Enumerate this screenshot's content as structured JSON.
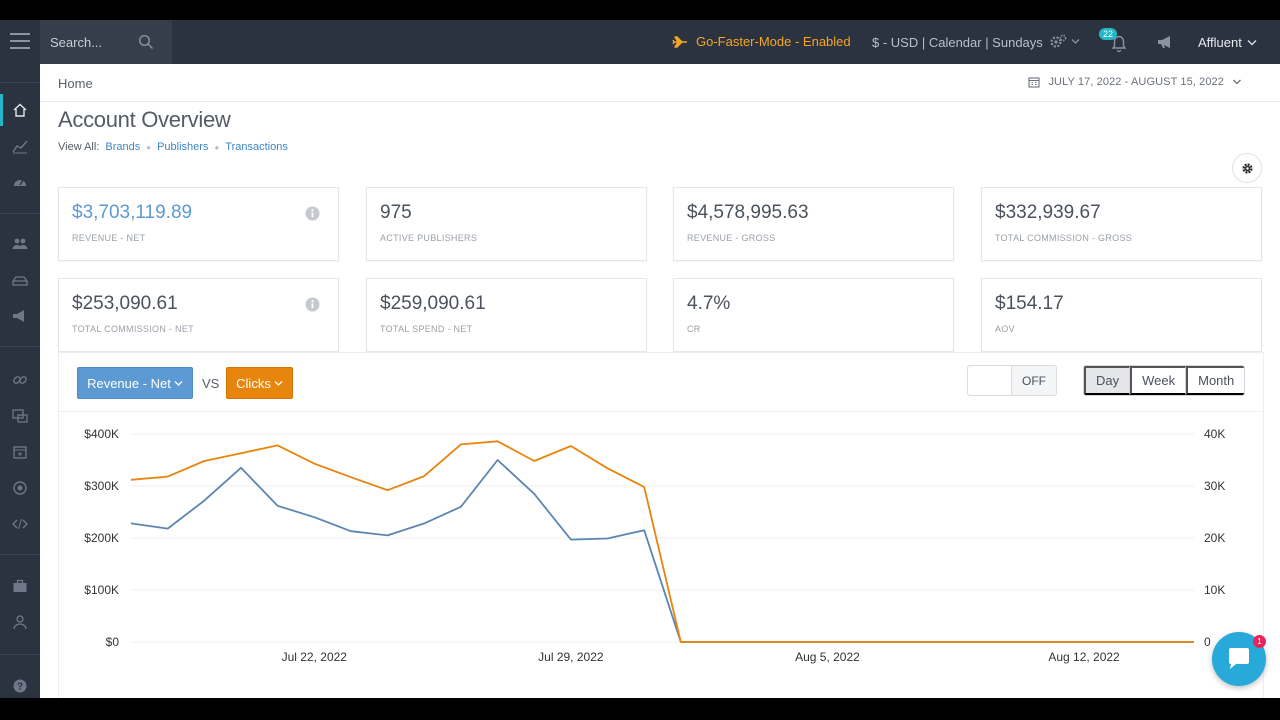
{
  "topbar": {
    "search_placeholder": "Search...",
    "go_faster": "Go-Faster-Mode - Enabled",
    "currency_calendar": "$ - USD | Calendar | Sundays",
    "notifications_count": "22",
    "account_name": "Affluent"
  },
  "header": {
    "breadcrumb": "Home",
    "date_range": "JULY 17, 2022 - AUGUST 15, 2022"
  },
  "page": {
    "title": "Account Overview",
    "view_all_label": "View All:",
    "links": [
      "Brands",
      "Publishers",
      "Transactions"
    ]
  },
  "kpis": [
    {
      "value": "$3,703,119.89",
      "label": "REVENUE - NET"
    },
    {
      "value": "975",
      "label": "ACTIVE PUBLISHERS"
    },
    {
      "value": "$4,578,995.63",
      "label": "REVENUE - GROSS"
    },
    {
      "value": "$332,939.67",
      "label": "TOTAL COMMISSION - GROSS"
    },
    {
      "value": "$253,090.61",
      "label": "TOTAL COMMISSION - NET"
    },
    {
      "value": "$259,090.61",
      "label": "TOTAL SPEND - NET"
    },
    {
      "value": "4.7%",
      "label": "CR"
    },
    {
      "value": "$154.17",
      "label": "AOV"
    }
  ],
  "chart_controls": {
    "metric_a": "Revenue - Net",
    "vs": "VS",
    "metric_b": "Clicks",
    "toggle_label": "OFF",
    "periods": [
      "Day",
      "Week",
      "Month"
    ],
    "active_period": "Day"
  },
  "chat": {
    "badge": "1"
  },
  "colors": {
    "accent_blue": "#5d9ad3",
    "accent_orange": "#e8850d",
    "sidebar_bg": "#2c3340",
    "teal": "#22b6c7"
  },
  "chart_data": {
    "type": "line",
    "x_tick_labels": [
      "Jul 22, 2022",
      "Jul 29, 2022",
      "Aug 5, 2022",
      "Aug 12, 2022"
    ],
    "x_tick_day_index": [
      5,
      12,
      19,
      26
    ],
    "days": 30,
    "y_left": {
      "ticks": [
        "$0",
        "$100K",
        "$200K",
        "$300K",
        "$400K"
      ],
      "range": [
        0,
        400000
      ]
    },
    "y_right": {
      "ticks": [
        "0",
        "10K",
        "20K",
        "30K",
        "40K"
      ],
      "range": [
        0,
        40000
      ]
    },
    "series": [
      {
        "name": "Revenue - Net",
        "axis": "left",
        "color": "#5b86b0",
        "values": [
          228000,
          218000,
          272000,
          335000,
          262000,
          240000,
          213000,
          205000,
          228000,
          260000,
          350000,
          285000,
          197000,
          199000,
          215000,
          0,
          0,
          0,
          0,
          0,
          0,
          0,
          0,
          0,
          0,
          0,
          0,
          0,
          0,
          0
        ]
      },
      {
        "name": "Clicks",
        "axis": "right",
        "color": "#e8850d",
        "values": [
          31200,
          31800,
          34800,
          36300,
          37800,
          34300,
          31700,
          29200,
          31900,
          38000,
          38600,
          34800,
          37700,
          33400,
          29800,
          0,
          0,
          0,
          0,
          0,
          0,
          0,
          0,
          0,
          0,
          0,
          0,
          0,
          0,
          0
        ]
      }
    ]
  }
}
